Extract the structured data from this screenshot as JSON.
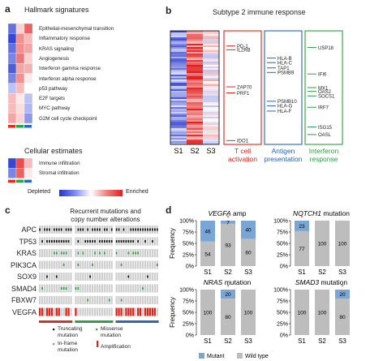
{
  "panels": {
    "a": {
      "label": "a",
      "hallmark_title": "Hallmark signatures",
      "hallmark_rows": [
        "Epithelial-mesenchymal transition",
        "Inflammatory response",
        "KRAS signaling",
        "Angiogenesis",
        "Interferon gamma response",
        "Interferon alpha response",
        "p53 pathway",
        "E2F targets",
        "MYC pathway",
        "G2M cell cycle checkpoint"
      ],
      "hallmark_values": [
        [
          -0.7,
          0.2,
          0.7
        ],
        [
          -0.9,
          0.5,
          0.3
        ],
        [
          -0.7,
          0.5,
          0.4
        ],
        [
          -0.6,
          0.6,
          0.2
        ],
        [
          -0.8,
          0.4,
          0.35
        ],
        [
          -0.6,
          0.5,
          0.1
        ],
        [
          -0.3,
          0.3,
          0.0
        ],
        [
          0.3,
          0.1,
          -0.3
        ],
        [
          0.3,
          0.15,
          -0.35
        ],
        [
          0.4,
          0.2,
          -0.5
        ]
      ],
      "cellular_title": "Cellular estimates",
      "cellular_rows": [
        "Immune infiltration",
        "Stromal infiltration"
      ],
      "cellular_values": [
        [
          -0.9,
          0.8,
          0.3
        ],
        [
          -0.6,
          0.7,
          0.1
        ]
      ],
      "legend_depleted": "Depleted",
      "legend_enriched": "Enriched"
    },
    "b": {
      "label": "b",
      "title": "Subtype 2 immune response",
      "columns": [
        "S1",
        "S2",
        "S3"
      ],
      "boxes": [
        {
          "name": "T cell activation",
          "line1": "T cell",
          "line2": "activation",
          "color": "#d7261e",
          "genes": [
            "PD-1",
            "IL2RB",
            "ZAP70",
            "PRF1",
            "IDO1"
          ]
        },
        {
          "name": "Antigen presentation",
          "line1": "Antigen",
          "line2": "presentation",
          "color": "#2c5fb3",
          "genes": [
            "HLA-B",
            "HLA-C",
            "TAP1",
            "PSMB9",
            "PSMB10",
            "HLA-G",
            "HLA-F"
          ]
        },
        {
          "name": "Interferon response",
          "line1": "Interferon",
          "line2": "response",
          "color": "#2e9a48",
          "genes": [
            "USP18",
            "IFI6",
            "MX1",
            "OAS2",
            "SOCS1",
            "IRF7",
            "ISG15",
            "OASL"
          ]
        }
      ]
    },
    "c": {
      "label": "c",
      "title_line1": "Recurrent mutations and",
      "title_line2": "copy number alterations",
      "genes": [
        "APC",
        "TP53",
        "KRAS",
        "PIK3CA",
        "SOX9",
        "SMAD4",
        "FBXW7",
        "VEGFA"
      ],
      "legend": {
        "truncating": "Truncating mutation",
        "missense": "Missense mutation",
        "inframe": "In-frame mutation",
        "amplification": "Amplification"
      }
    },
    "d": {
      "label": "d",
      "y_label": "Frequency",
      "legend_mutant": "Mutant",
      "legend_wildtype": "Wild type",
      "mutant_color": "#7aa6d6",
      "wildtype_color": "#bdbdbd"
    }
  },
  "chart_data": [
    {
      "type": "bar",
      "title": "VEGFA amp",
      "categories": [
        "S1",
        "S2",
        "S3"
      ],
      "series": [
        {
          "name": "Mutant",
          "values": [
            46,
            7,
            40
          ]
        },
        {
          "name": "Wild type",
          "values": [
            54,
            93,
            60
          ]
        }
      ],
      "significant": [
        "S2"
      ],
      "ylim": [
        0,
        100
      ],
      "yticks": [
        "0%",
        "25%",
        "50%",
        "75%",
        "100%"
      ]
    },
    {
      "type": "bar",
      "title": "NOTCH1 mutation",
      "categories": [
        "S1",
        "S2",
        "S3"
      ],
      "series": [
        {
          "name": "Mutant",
          "values": [
            23,
            0,
            0
          ]
        },
        {
          "name": "Wild type",
          "values": [
            77,
            100,
            100
          ]
        }
      ],
      "significant": [
        "S1"
      ],
      "ylim": [
        0,
        100
      ],
      "yticks": [
        "0%",
        "25%",
        "50%",
        "75%",
        "100%"
      ]
    },
    {
      "type": "bar",
      "title": "NRAS mutation",
      "categories": [
        "S1",
        "S2",
        "S3"
      ],
      "series": [
        {
          "name": "Mutant",
          "values": [
            0,
            20,
            0
          ]
        },
        {
          "name": "Wild type",
          "values": [
            100,
            80,
            100
          ]
        }
      ],
      "significant": [
        "S2"
      ],
      "ylim": [
        0,
        100
      ],
      "yticks": [
        "0%",
        "25%",
        "50%",
        "75%",
        "100%"
      ]
    },
    {
      "type": "bar",
      "title": "SMAD3 mutation",
      "categories": [
        "S1",
        "S2",
        "S3"
      ],
      "series": [
        {
          "name": "Mutant",
          "values": [
            0,
            0,
            20
          ]
        },
        {
          "name": "Wild type",
          "values": [
            100,
            100,
            80
          ]
        }
      ],
      "significant": [
        "S3"
      ],
      "ylim": [
        0,
        100
      ],
      "yticks": [
        "0%",
        "25%",
        "50%",
        "75%",
        "100%"
      ]
    }
  ]
}
